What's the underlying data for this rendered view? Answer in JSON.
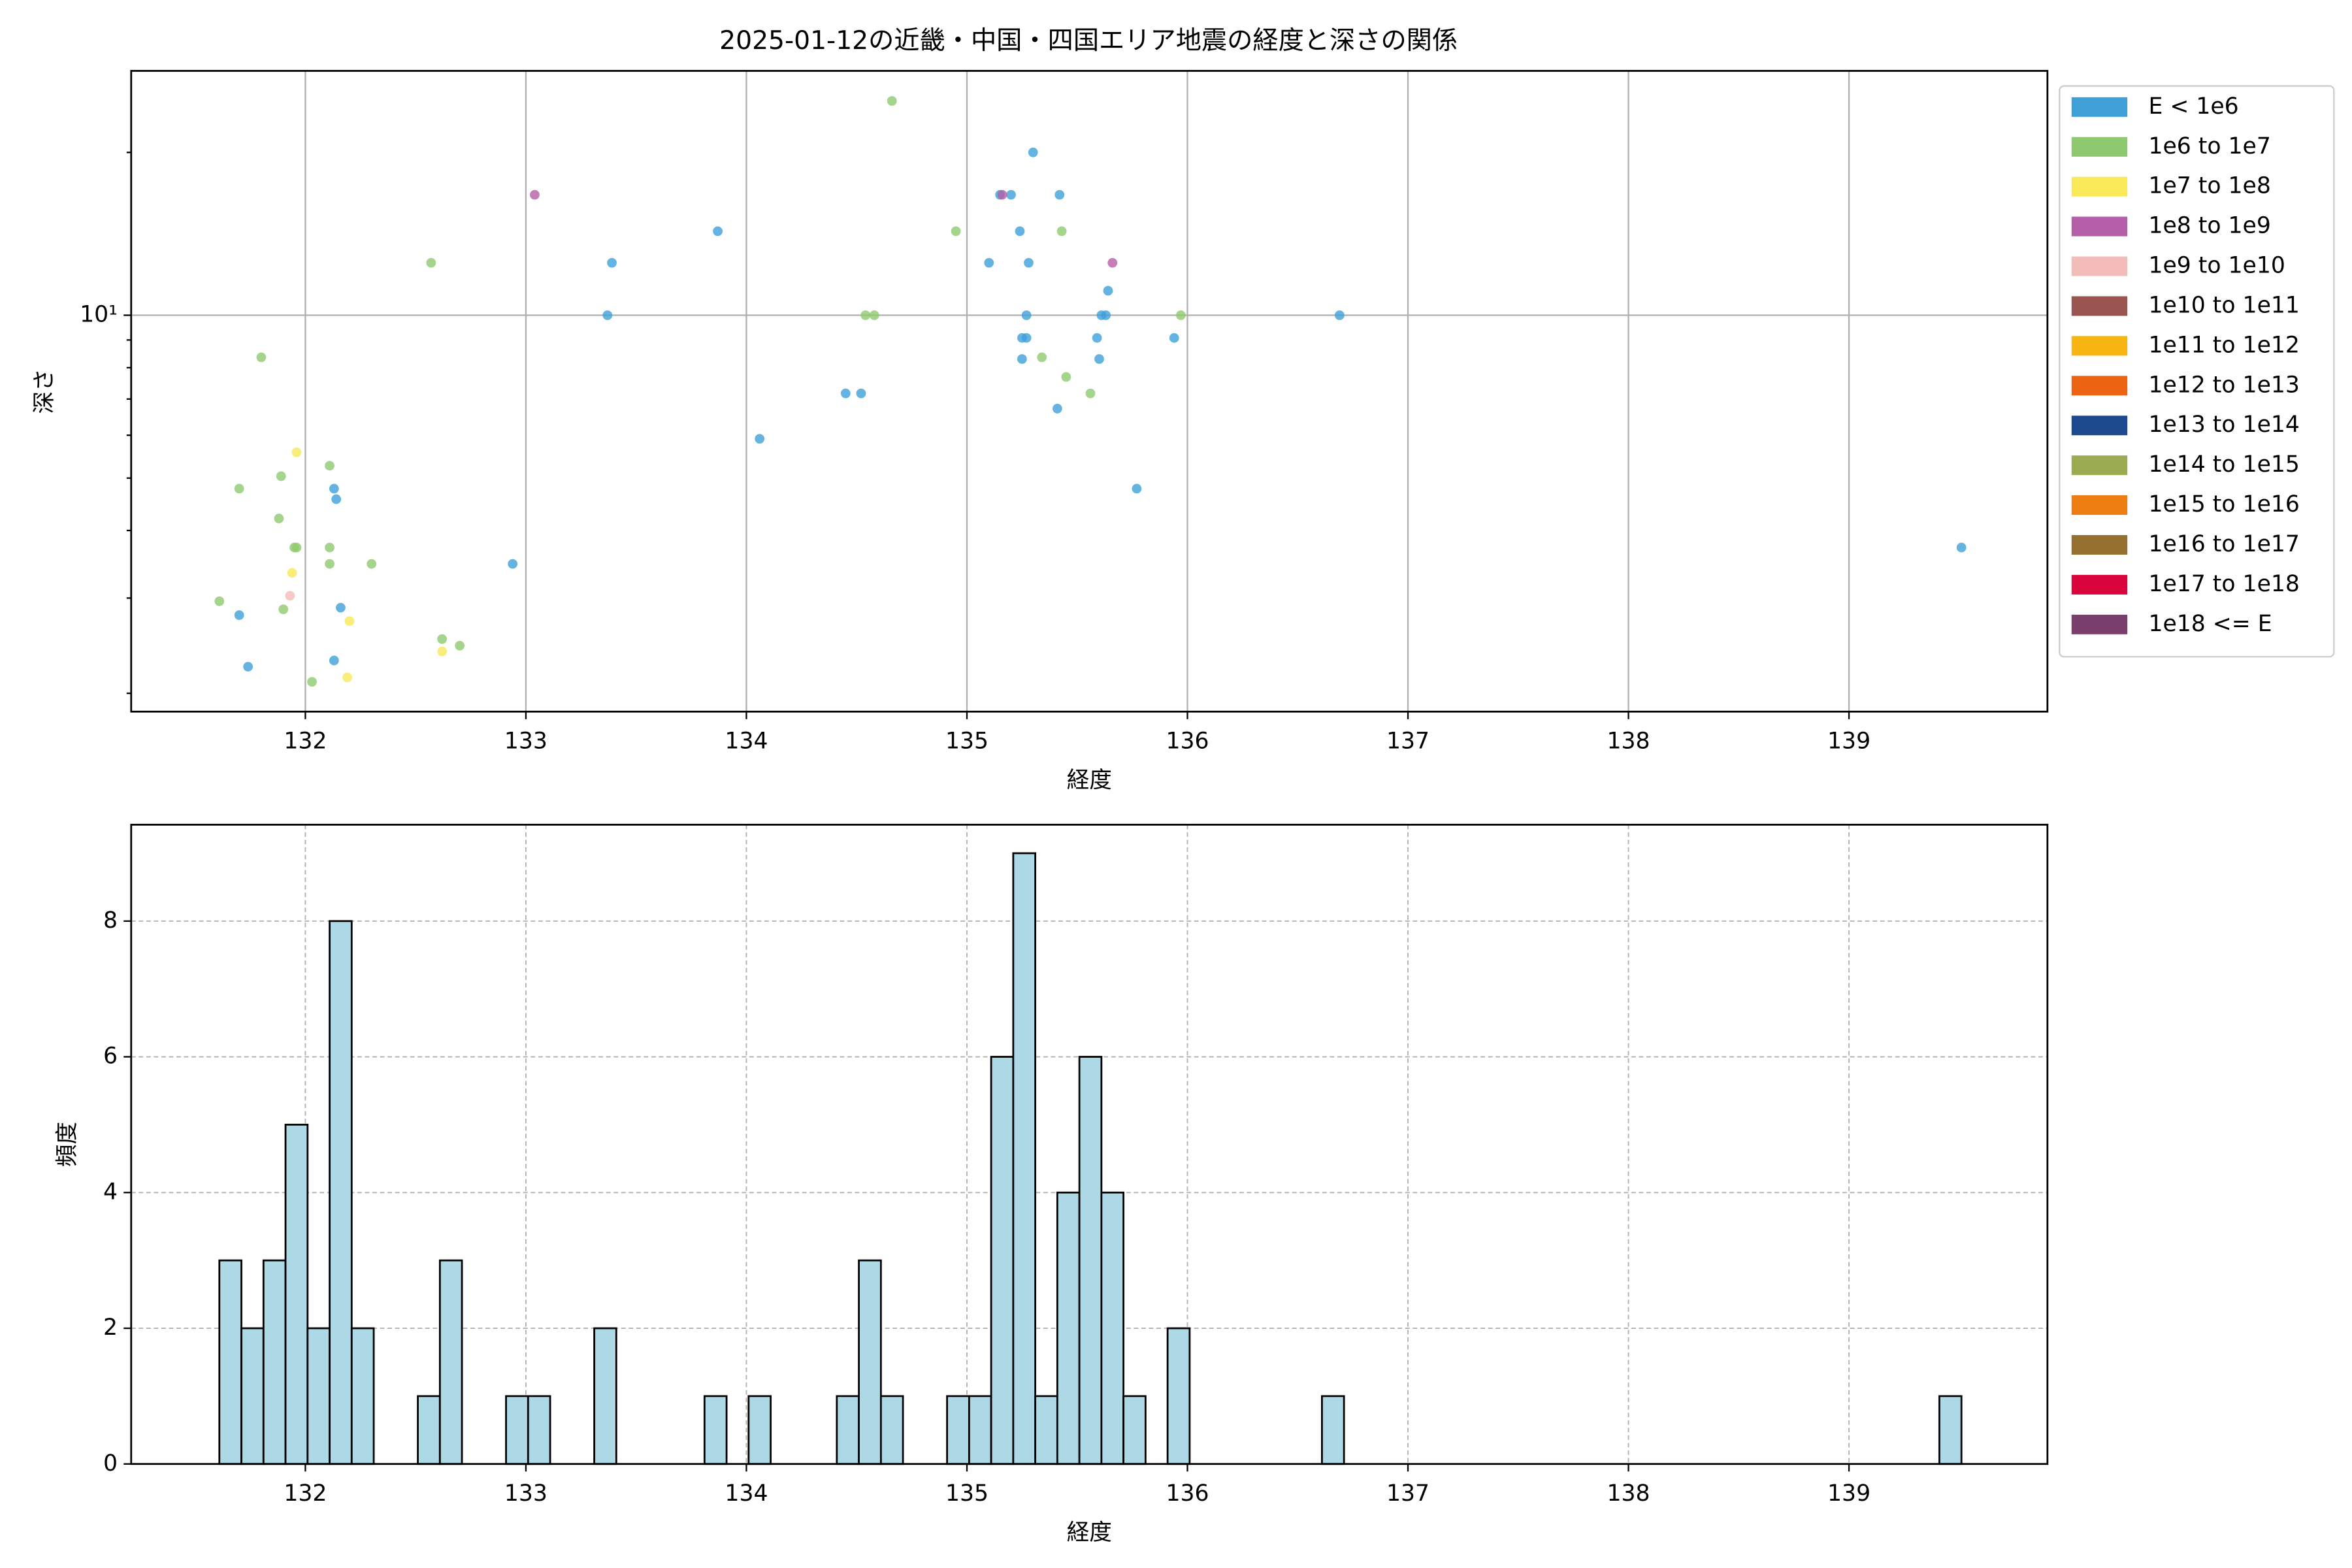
{
  "chart_data": [
    {
      "type": "scatter",
      "title": "2025-01-12の近畿・中国・四国エリア地震の経度と深さの関係",
      "x_label": "経度",
      "y_label": "深さ",
      "xlim": [
        131.21,
        139.9
      ],
      "xticks": [
        132,
        133,
        134,
        135,
        136,
        137,
        138,
        139
      ],
      "ylim": [
        1.85,
        28.3
      ],
      "y_scale": "log",
      "yticks": [
        {
          "value": 10,
          "label": "10¹"
        }
      ],
      "y_minor_ticks": [
        2,
        3,
        4,
        5,
        6,
        7,
        8,
        9,
        20
      ],
      "grid": true,
      "legend": "outside-right",
      "series": [
        {
          "name": "E < 1e6",
          "color": "#3fa0d8",
          "x": [
            131.7,
            131.74,
            132.13,
            132.14,
            132.16,
            132.13,
            132.94,
            133.37,
            133.39,
            133.87,
            134.06,
            134.45,
            134.52,
            135.1,
            135.15,
            135.2,
            135.24,
            135.3,
            135.42,
            135.28,
            135.25,
            135.27,
            135.27,
            135.25,
            135.59,
            135.61,
            135.63,
            135.64,
            135.41,
            135.6,
            135.77,
            135.94,
            136.69,
            139.51
          ],
          "values": [
            2.79,
            2.24,
            4.78,
            4.57,
            2.88,
            2.3,
            3.47,
            10,
            12.5,
            14.3,
            5.91,
            7.17,
            7.17,
            12.5,
            16.7,
            16.7,
            14.3,
            20.0,
            16.7,
            12.5,
            9.08,
            9.08,
            10,
            8.3,
            9.08,
            10,
            10,
            11.1,
            6.72,
            8.3,
            4.78,
            9.08,
            10,
            3.72
          ]
        },
        {
          "name": "1e6 to 1e7",
          "color": "#8fc96f",
          "x": [
            131.61,
            131.7,
            131.8,
            131.88,
            131.89,
            131.9,
            131.95,
            131.96,
            132.03,
            132.11,
            132.11,
            132.11,
            132.3,
            132.57,
            132.62,
            132.7,
            134.66,
            134.54,
            134.58,
            134.95,
            135.34,
            135.43,
            135.45,
            135.56,
            135.97
          ],
          "values": [
            2.96,
            4.78,
            8.36,
            4.21,
            5.04,
            2.86,
            3.72,
            3.72,
            2.1,
            5.27,
            3.72,
            3.47,
            3.47,
            12.5,
            2.52,
            2.45,
            24.9,
            10,
            10,
            14.3,
            8.36,
            14.3,
            7.69,
            7.17,
            10
          ]
        },
        {
          "name": "1e7 to 1e8",
          "color": "#f9e858",
          "x": [
            131.96,
            131.94,
            132.2,
            132.19,
            132.62
          ],
          "values": [
            5.58,
            3.34,
            2.72,
            2.14,
            2.39
          ]
        },
        {
          "name": "1e8 to 1e9",
          "color": "#b55fa8",
          "x": [
            133.04,
            135.16,
            135.66
          ],
          "values": [
            16.7,
            16.7,
            12.5
          ]
        },
        {
          "name": "1e9 to 1e10",
          "color": "#f4bcb8",
          "x": [
            131.93
          ],
          "values": [
            3.03
          ]
        },
        {
          "name": "1e10 to 1e11",
          "color": "#9a5450",
          "x": [],
          "values": []
        },
        {
          "name": "1e11 to 1e12",
          "color": "#f7b512",
          "x": [],
          "values": []
        },
        {
          "name": "1e12 to 1e13",
          "color": "#ec6412",
          "x": [],
          "values": []
        },
        {
          "name": "1e13 to 1e14",
          "color": "#1d4a8f",
          "x": [],
          "values": []
        },
        {
          "name": "1e14 to 1e15",
          "color": "#9bab52",
          "x": [],
          "values": []
        },
        {
          "name": "1e15 to 1e16",
          "color": "#ee7d12",
          "x": [],
          "values": []
        },
        {
          "name": "1e16 to 1e17",
          "color": "#956f2d",
          "x": [],
          "values": []
        },
        {
          "name": "1e17 to 1e18",
          "color": "#d9053c",
          "x": [],
          "values": []
        },
        {
          "name": "1e18 <= E",
          "color": "#7a3f6c",
          "x": [],
          "values": []
        }
      ]
    },
    {
      "type": "histogram",
      "x_label": "経度",
      "y_label": "頻度",
      "xlim": [
        131.21,
        139.9
      ],
      "xticks": [
        132,
        133,
        134,
        135,
        136,
        137,
        138,
        139
      ],
      "ylim": [
        0,
        9.42
      ],
      "yticks": [
        0,
        2,
        4,
        6,
        8
      ],
      "grid": true,
      "color": "#add8e6",
      "edge_color": "#000000",
      "bins": [
        131.61,
        131.71,
        131.81,
        131.91,
        132.01,
        132.11,
        132.21,
        132.31,
        132.41,
        132.51,
        132.61,
        132.71,
        132.81,
        132.91,
        133.01,
        133.11,
        133.21,
        133.31,
        133.41,
        133.51,
        133.61,
        133.71,
        133.81,
        133.91,
        134.01,
        134.11,
        134.21,
        134.31,
        134.41,
        134.51,
        134.61,
        134.71,
        134.81,
        134.91,
        135.01,
        135.11,
        135.21,
        135.31,
        135.41,
        135.51,
        135.61,
        135.71,
        135.81,
        135.91,
        136.01,
        136.11,
        136.21,
        136.31,
        136.41,
        136.51,
        136.61,
        136.71,
        136.81,
        136.91,
        137.01,
        137.11,
        137.21,
        137.31,
        137.41,
        137.51,
        137.61,
        137.71,
        137.81,
        137.91,
        138.01,
        138.11,
        138.21,
        138.31,
        138.41,
        138.51,
        138.61,
        138.71,
        138.81,
        138.91,
        139.01,
        139.11,
        139.21,
        139.31,
        139.41,
        139.51
      ],
      "values": [
        3,
        2,
        3,
        5,
        2,
        8,
        2,
        0,
        0,
        1,
        3,
        0,
        0,
        1,
        1,
        0,
        0,
        2,
        0,
        0,
        0,
        0,
        1,
        0,
        1,
        0,
        0,
        0,
        1,
        3,
        1,
        0,
        0,
        1,
        1,
        6,
        9,
        1,
        4,
        6,
        4,
        1,
        0,
        2,
        0,
        0,
        0,
        0,
        0,
        0,
        1,
        0,
        0,
        0,
        0,
        0,
        0,
        0,
        0,
        0,
        0,
        0,
        0,
        0,
        0,
        0,
        0,
        0,
        0,
        0,
        0,
        0,
        0,
        0,
        0,
        0,
        0,
        0,
        1
      ]
    }
  ]
}
